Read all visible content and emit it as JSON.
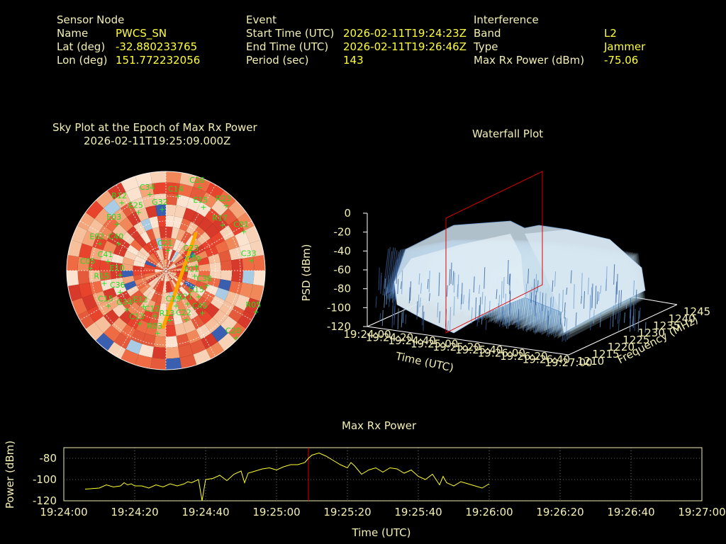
{
  "header": {
    "sensor": {
      "title": "Sensor Node",
      "name_label": "Name",
      "name": "PWCS_SN",
      "lat_label": "Lat (deg)",
      "lat": "-32.880233765",
      "lon_label": "Lon (deg)",
      "lon": "151.772232056"
    },
    "event": {
      "title": "Event",
      "start_label": "Start Time (UTC)",
      "start": "2026-02-11T19:24:23Z",
      "end_label": "End Time (UTC)",
      "end": "2026-02-11T19:26:46Z",
      "period_label": "Period (sec)",
      "period": "143"
    },
    "interference": {
      "title": "Interference",
      "band_label": "Band",
      "band": "L2",
      "type_label": "Type",
      "type": "Jammer",
      "maxrx_label": "Max Rx Power (dBm)",
      "maxrx": "-75.06"
    }
  },
  "sky_plot": {
    "title_line1": "Sky Plot at the Epoch of Max Rx Power",
    "title_line2": "2026-02-11T19:25:09.000Z",
    "satellite_labels": [
      "C21",
      "C45",
      "C05",
      "C23",
      "R03",
      "R12",
      "C38",
      "C15",
      "C16",
      "C22",
      "E02",
      "C09",
      "C13",
      "C34",
      "G15",
      "R15",
      "R23",
      "R13",
      "E03",
      "E11",
      "G34",
      "C14",
      "R21",
      "C41",
      "C01",
      "C12",
      "E25",
      "R05",
      "C36",
      "E15",
      "C19",
      "C40",
      "C33",
      "E12",
      "G32",
      "C20",
      "E10",
      "R17"
    ],
    "trajectory_color": "#ffa500",
    "label_color": "#22dd22"
  },
  "waterfall": {
    "title": "Waterfall Plot",
    "zlabel": "PSD (dBm)",
    "z_ticks": [
      "0",
      "-20",
      "-40",
      "-60",
      "-80",
      "-100",
      "-120"
    ],
    "time_label": "Time (UTC)",
    "time_ticks": [
      "19:24:00",
      "19:24:20",
      "19:24:40",
      "19:25:00",
      "19:25:20",
      "19:25:40",
      "19:26:00",
      "19:26:20",
      "19:26:40",
      "19:27:00"
    ],
    "freq_label": "Frequency (MHz)",
    "freq_ticks": [
      "1210",
      "1215",
      "1220",
      "1225",
      "1230",
      "1235",
      "1240",
      "1245"
    ]
  },
  "chart_data": {
    "type": "line",
    "title": "Max Rx Power",
    "xlabel": "Time (UTC)",
    "ylabel": "Power (dBm)",
    "x_ticks": [
      "19:24:00",
      "19:24:20",
      "19:24:40",
      "19:25:00",
      "19:25:20",
      "19:25:40",
      "19:26:00",
      "19:26:20",
      "19:26:40",
      "19:27:00"
    ],
    "y_ticks": [
      "-80",
      "-100",
      "-120"
    ],
    "ylim": [
      -120,
      -70
    ],
    "xlim_seconds": [
      0,
      180
    ],
    "grid": true,
    "marker_time": "19:25:09",
    "series": [
      {
        "color": "#ffff30",
        "points": [
          [
            6,
            -109
          ],
          [
            8,
            -108.5
          ],
          [
            10,
            -108
          ],
          [
            12,
            -105
          ],
          [
            14,
            -107
          ],
          [
            16,
            -106
          ],
          [
            17,
            -103
          ],
          [
            18,
            -105
          ],
          [
            19,
            -104
          ],
          [
            20,
            -106
          ],
          [
            22,
            -106
          ],
          [
            24,
            -108
          ],
          [
            26,
            -105
          ],
          [
            28,
            -107
          ],
          [
            30,
            -104
          ],
          [
            32,
            -106
          ],
          [
            34,
            -104
          ],
          [
            35,
            -102
          ],
          [
            36,
            -103
          ],
          [
            38,
            -100
          ],
          [
            39,
            -120
          ],
          [
            40,
            -100
          ],
          [
            42,
            -99
          ],
          [
            44,
            -96
          ],
          [
            46,
            -101
          ],
          [
            47,
            -98
          ],
          [
            48,
            -95
          ],
          [
            50,
            -92
          ],
          [
            51,
            -103
          ],
          [
            52,
            -94
          ],
          [
            54,
            -92
          ],
          [
            56,
            -90
          ],
          [
            58,
            -89
          ],
          [
            60,
            -91
          ],
          [
            62,
            -88
          ],
          [
            64,
            -86
          ],
          [
            66,
            -86
          ],
          [
            68,
            -84
          ],
          [
            69,
            -80
          ],
          [
            70,
            -77
          ],
          [
            72,
            -75
          ],
          [
            74,
            -78
          ],
          [
            76,
            -82
          ],
          [
            78,
            -86
          ],
          [
            80,
            -89
          ],
          [
            81,
            -84
          ],
          [
            82,
            -87
          ],
          [
            84,
            -95
          ],
          [
            86,
            -91
          ],
          [
            88,
            -89
          ],
          [
            90,
            -93
          ],
          [
            92,
            -89
          ],
          [
            94,
            -90
          ],
          [
            96,
            -94
          ],
          [
            98,
            -91
          ],
          [
            100,
            -97
          ],
          [
            102,
            -100
          ],
          [
            104,
            -95
          ],
          [
            106,
            -105
          ],
          [
            107,
            -97
          ],
          [
            108,
            -103
          ],
          [
            110,
            -106
          ],
          [
            112,
            -102
          ],
          [
            114,
            -104
          ],
          [
            116,
            -106
          ],
          [
            118,
            -108
          ],
          [
            120,
            -104
          ]
        ]
      }
    ]
  }
}
